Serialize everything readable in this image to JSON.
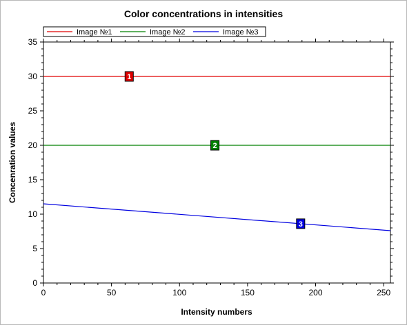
{
  "chart_data": {
    "type": "line",
    "title": "Color concentrations in intensities",
    "xlabel": "Intensity numbers",
    "ylabel": "Concenration values",
    "xlim": [
      0,
      255
    ],
    "ylim": [
      0,
      35
    ],
    "x_ticks": [
      0,
      50,
      100,
      150,
      200,
      250
    ],
    "y_ticks": [
      0,
      5,
      10,
      15,
      20,
      25,
      30,
      35
    ],
    "grid": false,
    "legend_position": "top",
    "series": [
      {
        "name": "Image №1",
        "color": "#e00000",
        "marker_label": "1",
        "marker_x": 63,
        "x": [
          0,
          255
        ],
        "y": [
          30,
          30
        ]
      },
      {
        "name": "Image №2",
        "color": "#008000",
        "marker_label": "2",
        "marker_x": 126,
        "x": [
          0,
          255
        ],
        "y": [
          20,
          20
        ]
      },
      {
        "name": "Image №3",
        "color": "#0000e0",
        "marker_label": "3",
        "marker_x": 189,
        "x": [
          0,
          255
        ],
        "y": [
          11.5,
          7.6
        ]
      }
    ]
  }
}
